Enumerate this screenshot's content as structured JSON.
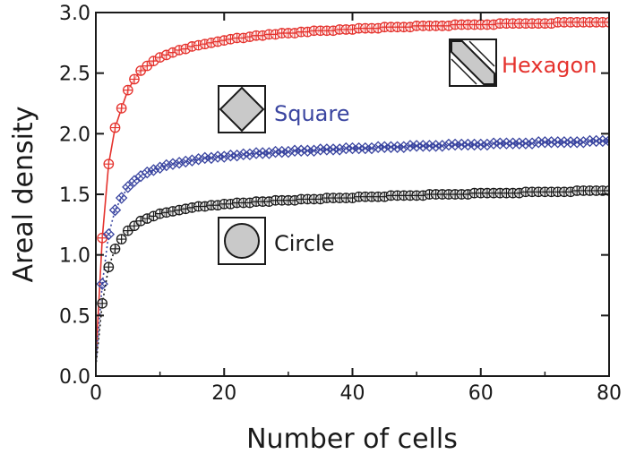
{
  "chart_data": {
    "type": "line",
    "title": "",
    "xlabel": "Number of cells",
    "ylabel": "Areal density",
    "xlim": [
      0,
      80
    ],
    "ylim": [
      0,
      3.0
    ],
    "xticks": [
      0,
      20,
      40,
      60,
      80
    ],
    "yticks": [
      0.0,
      0.5,
      1.0,
      1.5,
      2.0,
      2.5,
      3.0
    ],
    "ytick_labels": [
      "0.0",
      "0.5",
      "1.0",
      "1.5",
      "2.0",
      "2.5",
      "3.0"
    ],
    "grid": false,
    "series": [
      {
        "name": "Hexagon",
        "color": "#e5322d",
        "marker": "circle-plus",
        "line": "solid",
        "x": [
          0,
          1,
          2,
          3,
          4,
          5,
          6,
          7,
          8,
          9,
          10,
          11,
          12,
          13,
          14,
          15,
          16,
          17,
          18,
          19,
          20,
          21,
          22,
          23,
          24,
          25,
          26,
          27,
          28,
          29,
          30,
          31,
          32,
          33,
          34,
          35,
          36,
          37,
          38,
          39,
          40,
          41,
          42,
          43,
          44,
          45,
          46,
          47,
          48,
          49,
          50,
          51,
          52,
          53,
          54,
          55,
          56,
          57,
          58,
          59,
          60,
          61,
          62,
          63,
          64,
          65,
          66,
          67,
          68,
          69,
          70,
          71,
          72,
          73,
          74,
          75,
          76,
          77,
          78,
          79,
          80
        ],
        "values": [
          0.15,
          1.14,
          1.75,
          2.05,
          2.21,
          2.36,
          2.45,
          2.52,
          2.56,
          2.6,
          2.63,
          2.65,
          2.67,
          2.69,
          2.7,
          2.72,
          2.73,
          2.74,
          2.75,
          2.76,
          2.77,
          2.78,
          2.79,
          2.79,
          2.8,
          2.81,
          2.81,
          2.82,
          2.82,
          2.83,
          2.83,
          2.83,
          2.84,
          2.84,
          2.85,
          2.85,
          2.85,
          2.85,
          2.86,
          2.86,
          2.86,
          2.87,
          2.87,
          2.87,
          2.87,
          2.88,
          2.88,
          2.88,
          2.88,
          2.88,
          2.89,
          2.89,
          2.89,
          2.89,
          2.89,
          2.89,
          2.9,
          2.9,
          2.9,
          2.9,
          2.9,
          2.9,
          2.9,
          2.91,
          2.91,
          2.91,
          2.91,
          2.91,
          2.91,
          2.91,
          2.91,
          2.91,
          2.92,
          2.92,
          2.92,
          2.92,
          2.92,
          2.92,
          2.92,
          2.92,
          2.92
        ]
      },
      {
        "name": "Square",
        "color": "#3a45a0",
        "marker": "diamond-cross",
        "line": "dotted",
        "x": [
          0,
          1,
          2,
          3,
          4,
          5,
          6,
          7,
          8,
          9,
          10,
          11,
          12,
          13,
          14,
          15,
          16,
          17,
          18,
          19,
          20,
          21,
          22,
          23,
          24,
          25,
          26,
          27,
          28,
          29,
          30,
          31,
          32,
          33,
          34,
          35,
          36,
          37,
          38,
          39,
          40,
          41,
          42,
          43,
          44,
          45,
          46,
          47,
          48,
          49,
          50,
          51,
          52,
          53,
          54,
          55,
          56,
          57,
          58,
          59,
          60,
          61,
          62,
          63,
          64,
          65,
          66,
          67,
          68,
          69,
          70,
          71,
          72,
          73,
          74,
          75,
          76,
          77,
          78,
          79,
          80
        ],
        "values": [
          0.1,
          0.76,
          1.17,
          1.37,
          1.47,
          1.56,
          1.61,
          1.65,
          1.68,
          1.7,
          1.72,
          1.74,
          1.75,
          1.76,
          1.77,
          1.78,
          1.79,
          1.8,
          1.8,
          1.81,
          1.81,
          1.82,
          1.82,
          1.83,
          1.83,
          1.84,
          1.84,
          1.84,
          1.85,
          1.85,
          1.85,
          1.86,
          1.86,
          1.86,
          1.86,
          1.87,
          1.87,
          1.87,
          1.87,
          1.88,
          1.88,
          1.88,
          1.88,
          1.88,
          1.89,
          1.89,
          1.89,
          1.89,
          1.89,
          1.9,
          1.9,
          1.9,
          1.9,
          1.9,
          1.9,
          1.91,
          1.91,
          1.91,
          1.91,
          1.91,
          1.91,
          1.91,
          1.92,
          1.92,
          1.92,
          1.92,
          1.92,
          1.92,
          1.92,
          1.93,
          1.93,
          1.93,
          1.93,
          1.93,
          1.93,
          1.93,
          1.93,
          1.94,
          1.94,
          1.94,
          1.94
        ]
      },
      {
        "name": "Circle",
        "color": "#1a1a1a",
        "marker": "circle-plus",
        "line": "dotted",
        "x": [
          0,
          1,
          2,
          3,
          4,
          5,
          6,
          7,
          8,
          9,
          10,
          11,
          12,
          13,
          14,
          15,
          16,
          17,
          18,
          19,
          20,
          21,
          22,
          23,
          24,
          25,
          26,
          27,
          28,
          29,
          30,
          31,
          32,
          33,
          34,
          35,
          36,
          37,
          38,
          39,
          40,
          41,
          42,
          43,
          44,
          45,
          46,
          47,
          48,
          49,
          50,
          51,
          52,
          53,
          54,
          55,
          56,
          57,
          58,
          59,
          60,
          61,
          62,
          63,
          64,
          65,
          66,
          67,
          68,
          69,
          70,
          71,
          72,
          73,
          74,
          75,
          76,
          77,
          78,
          79,
          80
        ],
        "values": [
          0.08,
          0.6,
          0.9,
          1.05,
          1.13,
          1.2,
          1.24,
          1.28,
          1.3,
          1.32,
          1.34,
          1.35,
          1.36,
          1.37,
          1.38,
          1.39,
          1.4,
          1.4,
          1.41,
          1.41,
          1.42,
          1.42,
          1.43,
          1.43,
          1.43,
          1.44,
          1.44,
          1.44,
          1.45,
          1.45,
          1.45,
          1.45,
          1.46,
          1.46,
          1.46,
          1.46,
          1.47,
          1.47,
          1.47,
          1.47,
          1.47,
          1.48,
          1.48,
          1.48,
          1.48,
          1.48,
          1.49,
          1.49,
          1.49,
          1.49,
          1.49,
          1.49,
          1.5,
          1.5,
          1.5,
          1.5,
          1.5,
          1.5,
          1.5,
          1.51,
          1.51,
          1.51,
          1.51,
          1.51,
          1.51,
          1.51,
          1.51,
          1.52,
          1.52,
          1.52,
          1.52,
          1.52,
          1.52,
          1.52,
          1.52,
          1.53,
          1.53,
          1.53,
          1.53,
          1.53,
          1.53
        ]
      }
    ],
    "legend": [
      {
        "label": "Hexagon",
        "color": "#e5322d",
        "icon": "hexagon-cell-icon"
      },
      {
        "label": "Square",
        "color": "#3a45a0",
        "icon": "square-cell-icon"
      },
      {
        "label": "Circle",
        "color": "#1a1a1a",
        "icon": "circle-cell-icon"
      }
    ]
  }
}
